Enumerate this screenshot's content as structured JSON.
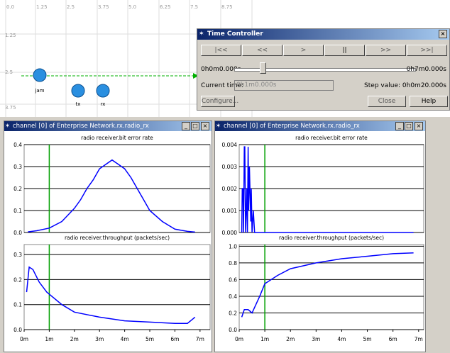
{
  "map": {
    "x_labels": [
      "0.0",
      "1.25",
      "2.5",
      "3.75",
      "5.0",
      "6.25",
      "7.5",
      "8.75"
    ],
    "y_labels": [
      "1.25",
      "2.5",
      "3.75"
    ],
    "nodes": [
      "jam",
      "tx",
      "rx"
    ]
  },
  "time_controller": {
    "title": "Time Controller",
    "buttons": [
      "|<<",
      "<<",
      ">",
      "||",
      ">>",
      ">>|"
    ],
    "start": "0h0m0.000s",
    "end": "0h7m0.000s",
    "current_time_label": "Current time:",
    "current_time": "0h1m0.000s",
    "step_label": "Step value:",
    "step": "0h0m20.000s",
    "configure": "Configure...",
    "close": "Close",
    "help": "Help"
  },
  "windows": [
    {
      "title": "channel [0] of Enterprise Network.rx.radio_rx",
      "plots": [
        {
          "type": "line",
          "title": "radio receiver.bit error rate",
          "color": "#0000ff",
          "cursor_x": 1,
          "xlim": [
            0,
            7.4
          ],
          "ylim": [
            0,
            0.4
          ],
          "xticks": [
            {
              "value": 0,
              "label": "0m"
            },
            {
              "value": 1,
              "label": "1m"
            },
            {
              "value": 2,
              "label": "2m"
            },
            {
              "value": 3,
              "label": "3m"
            },
            {
              "value": 4,
              "label": "4m"
            },
            {
              "value": 5,
              "label": "5m"
            },
            {
              "value": 6,
              "label": "6m"
            },
            {
              "value": 7,
              "label": "7m"
            }
          ],
          "yticks": [
            {
              "value": 0,
              "label": "0.0"
            },
            0.1,
            0.2,
            0.3,
            0.4
          ],
          "x": [
            0.15,
            0.5,
            1.0,
            1.5,
            2.0,
            2.25,
            2.5,
            2.75,
            3.0,
            3.25,
            3.5,
            3.75,
            4.0,
            4.25,
            4.5,
            4.75,
            5.0,
            5.5,
            6.0,
            6.5,
            6.8
          ],
          "values": [
            0.003,
            0.008,
            0.02,
            0.05,
            0.11,
            0.15,
            0.2,
            0.24,
            0.29,
            0.31,
            0.33,
            0.31,
            0.29,
            0.25,
            0.2,
            0.15,
            0.1,
            0.05,
            0.015,
            0.005,
            0.002
          ]
        },
        {
          "type": "line",
          "title": "radio receiver.throughput (packets/sec)",
          "color": "#0000ff",
          "cursor_x": 1,
          "xlim": [
            0,
            7.4
          ],
          "ylim": [
            0,
            0.34
          ],
          "xticks": [
            {
              "value": 0,
              "label": "0m"
            },
            {
              "value": 1,
              "label": "1m"
            },
            {
              "value": 2,
              "label": "2m"
            },
            {
              "value": 3,
              "label": "3m"
            },
            {
              "value": 4,
              "label": "4m"
            },
            {
              "value": 5,
              "label": "5m"
            },
            {
              "value": 6,
              "label": "6m"
            },
            {
              "value": 7,
              "label": "7m"
            }
          ],
          "yticks": [
            {
              "value": 0,
              "label": "0.0"
            },
            0.1,
            0.2,
            0.3
          ],
          "x": [
            0.1,
            0.2,
            0.35,
            0.6,
            0.9,
            1.5,
            2,
            3,
            4,
            5,
            6,
            6.5,
            6.8
          ],
          "values": [
            0.15,
            0.25,
            0.24,
            0.19,
            0.15,
            0.1,
            0.07,
            0.05,
            0.035,
            0.03,
            0.025,
            0.025,
            0.05
          ]
        }
      ]
    },
    {
      "title": "channel [0] of Enterprise Network.rx.radio_rx",
      "plots": [
        {
          "type": "line",
          "title": "radio receiver.bit error rate",
          "color": "#0000ff",
          "cursor_x": 1,
          "xlim": [
            0,
            7.2
          ],
          "ylim": [
            0,
            0.004
          ],
          "xticks": [
            {
              "value": 0,
              "label": "0m"
            },
            {
              "value": 1,
              "label": "1m"
            },
            {
              "value": 2,
              "label": "2m"
            },
            {
              "value": 3,
              "label": "3m"
            },
            {
              "value": 4,
              "label": "4m"
            },
            {
              "value": 5,
              "label": "5m"
            },
            {
              "value": 6,
              "label": "6m"
            },
            {
              "value": 7,
              "label": "7m"
            }
          ],
          "yticks": [
            {
              "value": 0,
              "label": "0.000"
            },
            {
              "value": 0.001,
              "label": "0.001"
            },
            {
              "value": 0.002,
              "label": "0.002"
            },
            {
              "value": 0.003,
              "label": "0.003"
            },
            {
              "value": 0.004,
              "label": "0.004"
            }
          ],
          "x": [
            0.1,
            0.12,
            0.15,
            0.17,
            0.2,
            0.22,
            0.25,
            0.3,
            0.32,
            0.35,
            0.37,
            0.4,
            0.45,
            0.47,
            0.5,
            0.55,
            0.6,
            6.8
          ],
          "values": [
            0,
            0.002,
            0.002,
            0,
            0.0039,
            0.0039,
            0,
            0.002,
            0,
            0.0039,
            0.001,
            0.003,
            0.0005,
            0.002,
            0,
            0.001,
            0,
            0
          ]
        },
        {
          "type": "line",
          "title": "radio receiver.throughput (packets/sec)",
          "color": "#0000ff",
          "cursor_x": 1,
          "xlim": [
            0,
            7.2
          ],
          "ylim": [
            0,
            1.02
          ],
          "xticks": [
            {
              "value": 0,
              "label": "0m"
            },
            {
              "value": 1,
              "label": "1m"
            },
            {
              "value": 2,
              "label": "2m"
            },
            {
              "value": 3,
              "label": "3m"
            },
            {
              "value": 4,
              "label": "4m"
            },
            {
              "value": 5,
              "label": "5m"
            },
            {
              "value": 6,
              "label": "6m"
            },
            {
              "value": 7,
              "label": "7m"
            }
          ],
          "yticks": [
            {
              "value": 0,
              "label": "0.0"
            },
            0.2,
            0.4,
            0.6,
            0.8,
            {
              "value": 1,
              "label": "1.0"
            }
          ],
          "x": [
            0.1,
            0.2,
            0.35,
            0.5,
            0.8,
            1,
            1.5,
            2,
            3,
            4,
            5,
            6,
            6.8
          ],
          "values": [
            0.15,
            0.24,
            0.24,
            0.2,
            0.4,
            0.55,
            0.65,
            0.73,
            0.8,
            0.85,
            0.88,
            0.91,
            0.92
          ]
        }
      ]
    }
  ]
}
